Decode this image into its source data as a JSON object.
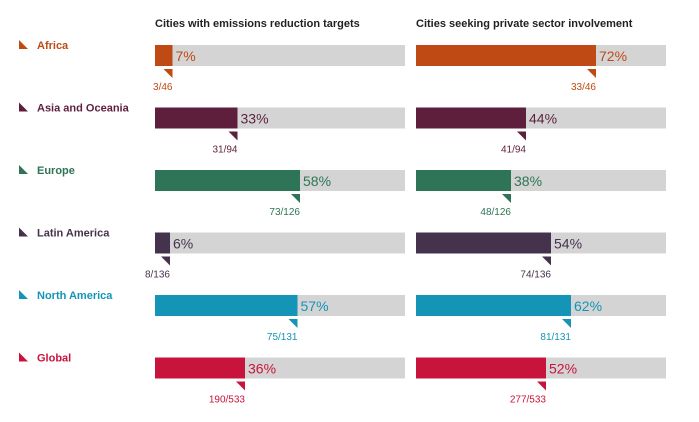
{
  "chart_data": {
    "type": "bar",
    "orientation": "horizontal",
    "xlim": [
      0,
      100
    ],
    "track_color": "#d4d4d4",
    "columns": [
      {
        "title": "Cities with emissions reduction targets"
      },
      {
        "title": "Cities seeking private sector involvement"
      }
    ],
    "regions": [
      {
        "name": "Africa",
        "color": "#c04a14",
        "label_color": "#c04a14",
        "pct_color": "#c04a14",
        "values": [
          7,
          72
        ],
        "pct_labels": [
          "7%",
          "72%"
        ],
        "counts": [
          "3/46",
          "33/46"
        ]
      },
      {
        "name": "Asia and Oceania",
        "color": "#5e1f3c",
        "label_color": "#5e1f3c",
        "pct_color": "#5e1f3c",
        "values": [
          33,
          44
        ],
        "pct_labels": [
          "33%",
          "44%"
        ],
        "counts": [
          "31/94",
          "41/94"
        ]
      },
      {
        "name": "Europe",
        "color": "#2e7456",
        "label_color": "#2e7456",
        "pct_color": "#2e7456",
        "values": [
          58,
          38
        ],
        "pct_labels": [
          "58%",
          "38%"
        ],
        "counts": [
          "73/126",
          "48/126"
        ]
      },
      {
        "name": "Latin America",
        "color": "#45324c",
        "label_color": "#45324c",
        "pct_color": "#45324c",
        "values": [
          6,
          54
        ],
        "pct_labels": [
          "6%",
          "54%"
        ],
        "counts": [
          "8/136",
          "74/136"
        ]
      },
      {
        "name": "North America",
        "color": "#1495b7",
        "label_color": "#1495b7",
        "pct_color": "#1495b7",
        "values": [
          57,
          62
        ],
        "pct_labels": [
          "57%",
          "62%"
        ],
        "counts": [
          "75/131",
          "81/131"
        ]
      },
      {
        "name": "Global",
        "color": "#c8143c",
        "label_color": "#c8143c",
        "pct_color": "#c8143c",
        "values": [
          36,
          52
        ],
        "pct_labels": [
          "36%",
          "52%"
        ],
        "counts": [
          "190/533",
          "277/533"
        ]
      }
    ]
  }
}
